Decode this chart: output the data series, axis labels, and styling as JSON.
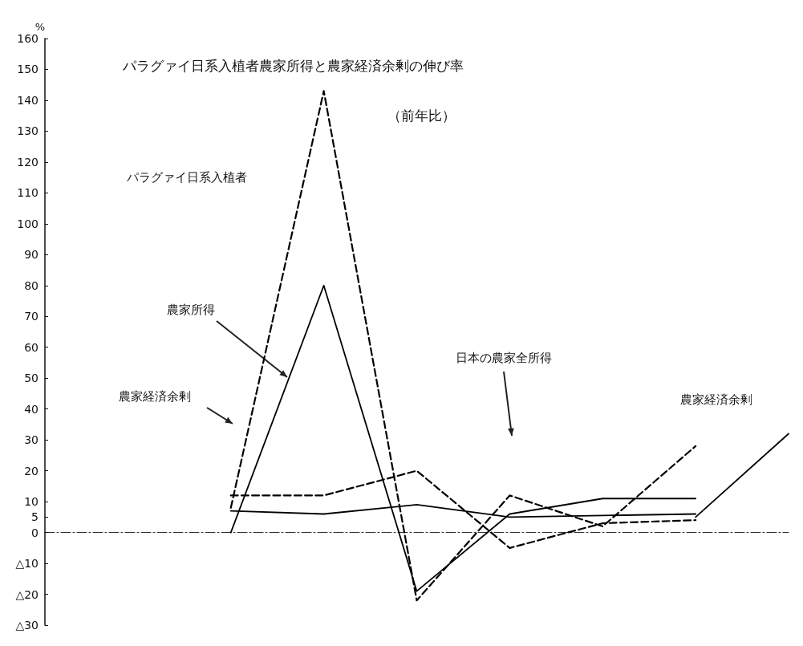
{
  "chart_data": {
    "type": "line",
    "title": "パラグァイ日系入植者農家所得と農家経済余剰の伸び率",
    "subtitle": "（前年比）",
    "ylabel": "%",
    "categories": [
      null,
      null,
      null,
      null,
      null,
      null,
      null,
      null,
      null
    ],
    "series": [
      {
        "color": "#000000",
        "line_style": "solid",
        "values": [
          null,
          null,
          0,
          80,
          -19,
          6,
          11,
          11,
          null
        ]
      },
      {
        "color": "#000000",
        "line_style": "dashed",
        "values": [
          null,
          null,
          8,
          143,
          -22,
          12,
          2,
          28,
          null
        ]
      },
      {
        "color": "#000000",
        "line_style": "solid",
        "values": [
          null,
          null,
          7,
          6,
          9,
          5,
          5.5,
          6,
          null
        ]
      },
      {
        "color": "#000000",
        "line_style": "dashed",
        "values": [
          null,
          null,
          12,
          12,
          20,
          -5,
          3,
          4,
          null
        ]
      },
      {
        "color": "#000000",
        "line_style": "solid",
        "values": [
          null,
          null,
          null,
          null,
          null,
          null,
          null,
          5,
          32
        ]
      }
    ],
    "ylim": [
      -30,
      160
    ],
    "yticks": [
      160,
      150,
      140,
      130,
      120,
      110,
      100,
      90,
      80,
      70,
      60,
      50,
      40,
      30,
      20,
      10,
      5,
      0,
      {
        "value": -10,
        "label": "△10"
      },
      {
        "value": -20,
        "label": "△20"
      },
      {
        "value": -30,
        "label": "△30"
      }
    ],
    "annotations": [
      "パラグァイ日系入植者",
      "農家所得",
      "農家経済余剰",
      "日本の農家全所得",
      "農家経済余剰"
    ],
    "marker": "none"
  }
}
